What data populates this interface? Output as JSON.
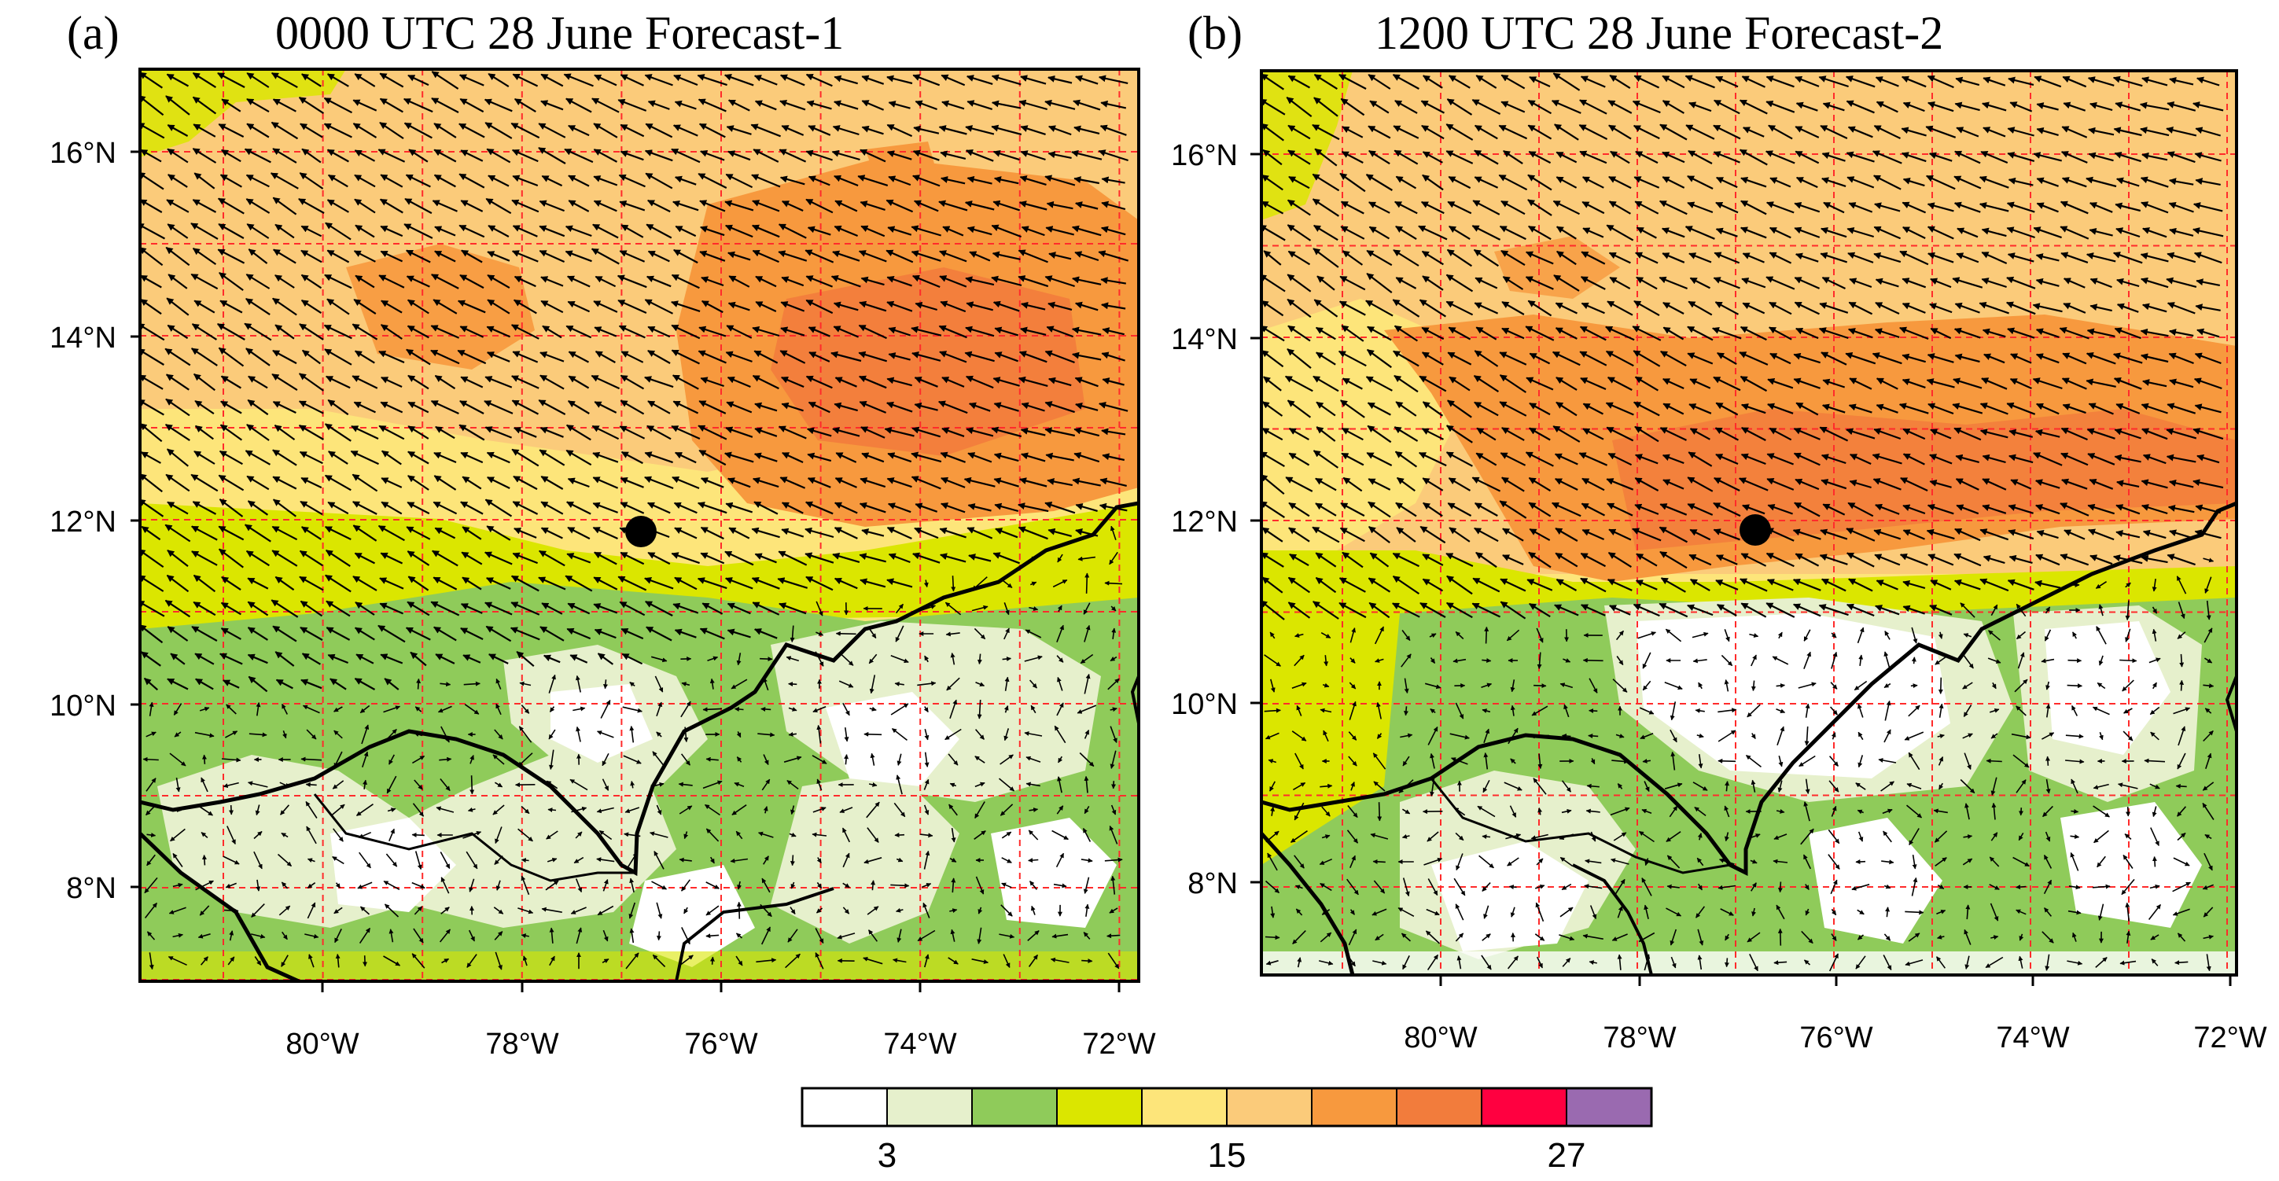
{
  "panels": [
    {
      "id": "a",
      "label": "(a)",
      "title": "0000 UTC 28 June Forecast-1"
    },
    {
      "id": "b",
      "label": "(b)",
      "title": "1200 UTC 28 June Forecast-2"
    }
  ],
  "axes": {
    "lon_ticks": [
      "80°W",
      "78°W",
      "76°W",
      "74°W",
      "72°W"
    ],
    "lat_ticks": [
      "16°N",
      "14°N",
      "12°N",
      "10°N",
      "8°N"
    ]
  },
  "colorbar": {
    "colors": [
      "#ffffff",
      "#e6f0cc",
      "#8fcb5a",
      "#dbe600",
      "#fde57a",
      "#fbcb7a",
      "#f7993e",
      "#f27c3c",
      "#ff0040",
      "#9a6ab0"
    ],
    "tick_labels": [
      "3",
      "15",
      "27"
    ]
  },
  "colors": {
    "grid": "#ff2b2b",
    "coast": "#000000",
    "marker": "#000000"
  }
}
